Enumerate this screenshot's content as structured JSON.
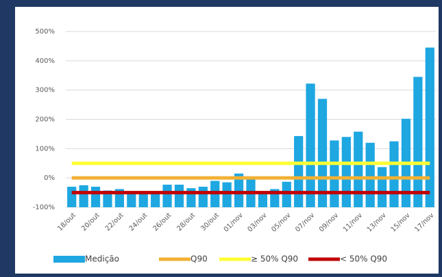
{
  "chart_data": {
    "type": "bar",
    "categories": [
      "18/out",
      null,
      "20/out",
      null,
      "22/out",
      null,
      "24/out",
      null,
      "26/out",
      null,
      "28/out",
      null,
      "30/out",
      null,
      "01/nov",
      null,
      "03/nov",
      null,
      "05/nov",
      null,
      "07/nov",
      null,
      "09/nov",
      null,
      "11/nov",
      null,
      "13/nov",
      null,
      "15/nov",
      null,
      "17/nov"
    ],
    "series": [
      {
        "name": "Medição",
        "type": "bar",
        "color": "#1ea7e1",
        "values": [
          -30,
          -25,
          -30,
          -43,
          -38,
          -52,
          -55,
          -55,
          -23,
          -23,
          -35,
          -30,
          -10,
          -15,
          15,
          -5,
          -55,
          -38,
          -13,
          143,
          322,
          270,
          128,
          140,
          158,
          120,
          37,
          125,
          202,
          345,
          445
        ]
      },
      {
        "name": "Q90",
        "type": "line",
        "color": "#f2b134",
        "values": [
          0,
          0,
          0,
          0,
          0,
          0,
          0,
          0,
          0,
          0,
          0,
          0,
          0,
          0,
          0,
          0,
          0,
          0,
          0,
          0,
          0,
          0,
          0,
          0,
          0,
          0,
          0,
          0,
          0,
          0,
          0
        ]
      },
      {
        "name": "≥ 50% Q90",
        "type": "line",
        "color": "#ffff33",
        "values": [
          50,
          50,
          50,
          50,
          50,
          50,
          50,
          50,
          50,
          50,
          50,
          50,
          50,
          50,
          50,
          50,
          50,
          50,
          50,
          50,
          50,
          50,
          50,
          50,
          50,
          50,
          50,
          50,
          50,
          50,
          50
        ]
      },
      {
        "name": "< 50% Q90",
        "type": "line",
        "color": "#c00000",
        "values": [
          -50,
          -50,
          -50,
          -50,
          -50,
          -50,
          -50,
          -50,
          -50,
          -50,
          -50,
          -50,
          -50,
          -50,
          -50,
          -50,
          -50,
          -50,
          -50,
          -50,
          -50,
          -50,
          -50,
          -50,
          -50,
          -50,
          -50,
          -50,
          -50,
          -50,
          -50
        ]
      }
    ],
    "ylim": [
      -100,
      500
    ],
    "yticks": [
      {
        "value": -100,
        "label": "-100%"
      },
      {
        "value": 0,
        "label": "0%"
      },
      {
        "value": 100,
        "label": "100%"
      },
      {
        "value": 200,
        "label": "200%"
      },
      {
        "value": 300,
        "label": "300%"
      },
      {
        "value": 400,
        "label": "400%"
      },
      {
        "value": 500,
        "label": "500%"
      }
    ],
    "grid": true,
    "legend": "bottom"
  }
}
